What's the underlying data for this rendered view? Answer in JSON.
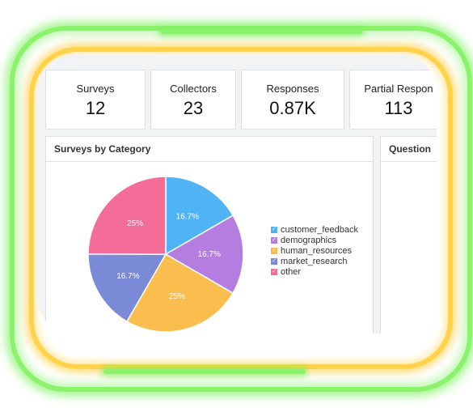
{
  "kpis": [
    {
      "label": "Surveys",
      "value": "12"
    },
    {
      "label": "Collectors",
      "value": "23"
    },
    {
      "label": "Responses",
      "value": "0.87K"
    },
    {
      "label": "Partial Respon",
      "value": "113"
    }
  ],
  "panels": {
    "category_title": "Surveys by Category",
    "question_title": "Question"
  },
  "chart_data": {
    "type": "pie",
    "title": "Surveys by Category",
    "categories": [
      "customer_feedback",
      "demographics",
      "human_resources",
      "market_research",
      "other"
    ],
    "values": [
      16.7,
      16.7,
      25,
      16.7,
      25
    ],
    "labels": [
      "16.7%",
      "16.7%",
      "25%",
      "16.7%",
      "25%"
    ],
    "colors": [
      "#4fb3f6",
      "#b57de0",
      "#fbbd4e",
      "#7a8ad6",
      "#f46d98"
    ],
    "legend_position": "right"
  },
  "colors": {
    "neon_green": "#8af36b",
    "neon_yellow": "#ffd24a"
  }
}
